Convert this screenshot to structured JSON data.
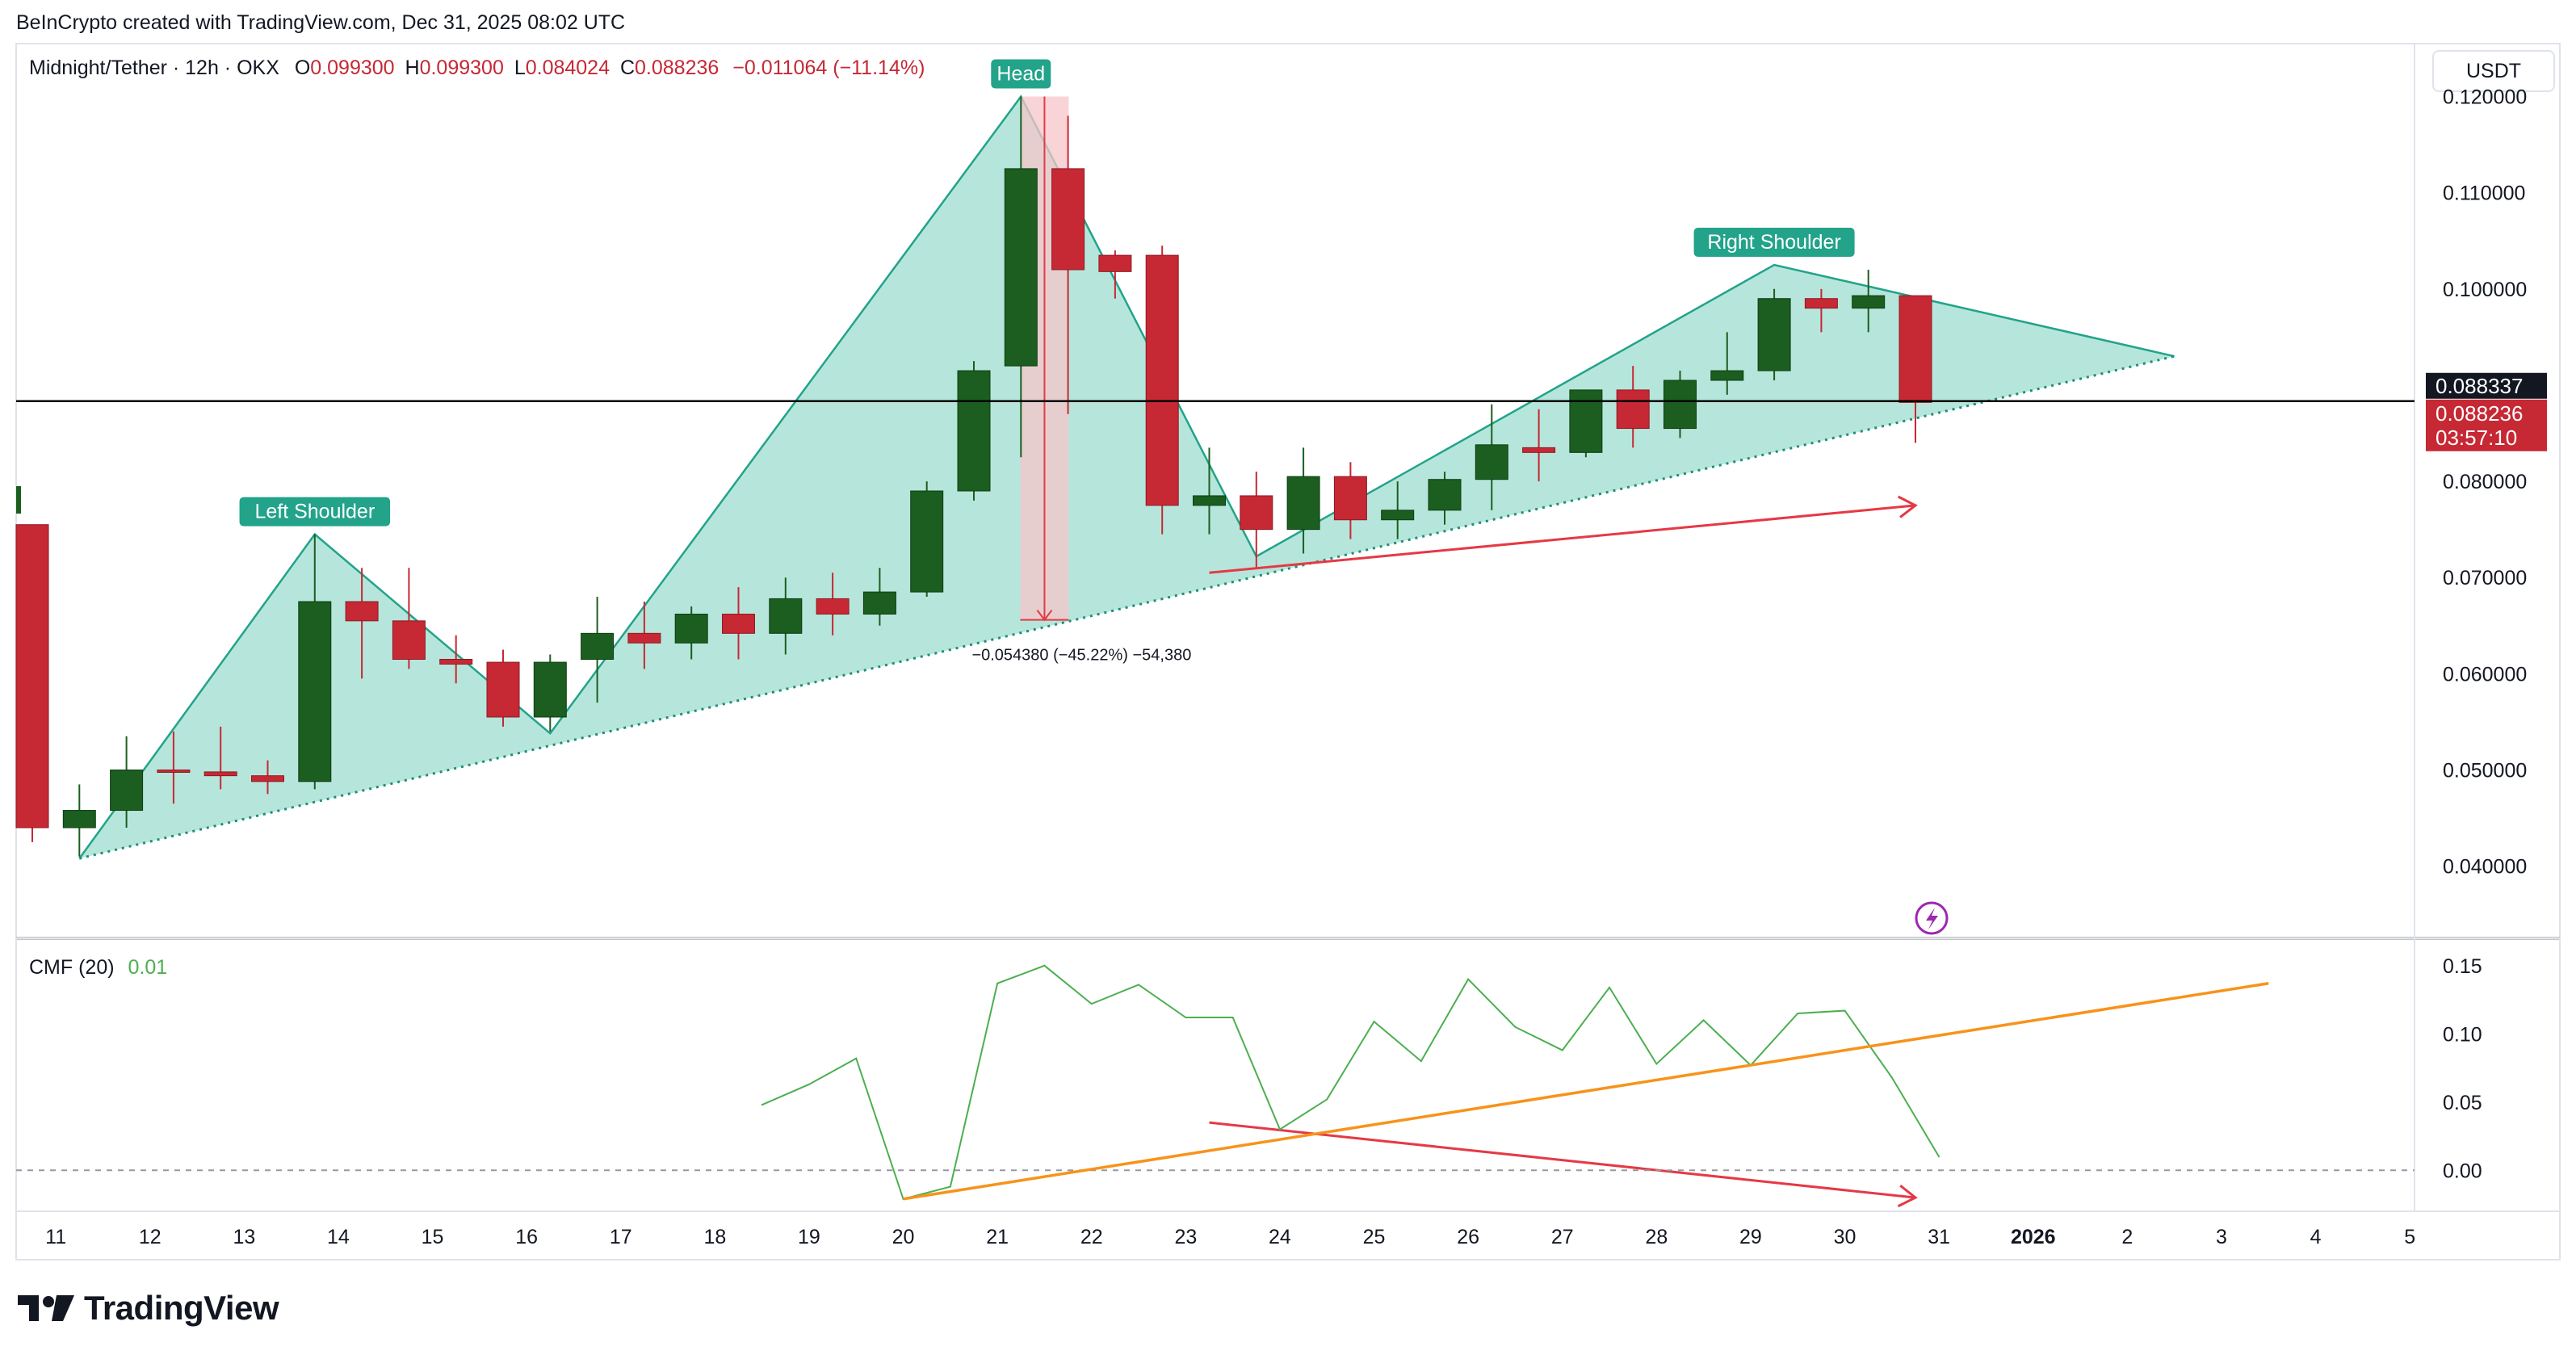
{
  "header": {
    "attribution": "BeInCrypto created with TradingView.com, Dec 31, 2025 08:02 UTC",
    "symbol": "Midnight/Tether · 12h · OKX",
    "o_label": "O",
    "o_value": "0.099300",
    "h_label": "H",
    "h_value": "0.099300",
    "l_label": "L",
    "l_value": "0.084024",
    "c_label": "C",
    "c_value": "0.088236",
    "change": "−0.011064 (−11.14%)"
  },
  "currency": "USDT",
  "brand": "TradingView",
  "colors": {
    "up": "#1b5e20",
    "down": "#c62834",
    "pattern_fill": "#b2e5d9",
    "pattern_line": "#22a38a",
    "tag_bg": "#22a38a",
    "cmf_line": "#4caf50",
    "cmf_trend": "#f7931a",
    "arrow": "#e53945",
    "price_line": "#000000",
    "lightning": "#9c27b0"
  },
  "chart_data": [
    {
      "type": "candlestick",
      "title": "Midnight/Tether · 12h · OKX",
      "x_labels": [
        {
          "t": 0.5,
          "label": "11"
        },
        {
          "t": 2.5,
          "label": "12"
        },
        {
          "t": 4.5,
          "label": "13"
        },
        {
          "t": 6.5,
          "label": "14"
        },
        {
          "t": 8.5,
          "label": "15"
        },
        {
          "t": 10.5,
          "label": "16"
        },
        {
          "t": 12.5,
          "label": "17"
        },
        {
          "t": 14.5,
          "label": "18"
        },
        {
          "t": 16.5,
          "label": "19"
        },
        {
          "t": 18.5,
          "label": "20"
        },
        {
          "t": 20.5,
          "label": "21"
        },
        {
          "t": 22.5,
          "label": "22"
        },
        {
          "t": 24.5,
          "label": "23"
        },
        {
          "t": 26.5,
          "label": "24"
        },
        {
          "t": 28.5,
          "label": "25"
        },
        {
          "t": 30.5,
          "label": "26"
        },
        {
          "t": 32.5,
          "label": "27"
        },
        {
          "t": 34.5,
          "label": "28"
        },
        {
          "t": 36.5,
          "label": "29"
        },
        {
          "t": 38.5,
          "label": "30"
        },
        {
          "t": 40.5,
          "label": "31"
        },
        {
          "t": 42.5,
          "label": "2026"
        },
        {
          "t": 44.5,
          "label": "2"
        },
        {
          "t": 46.5,
          "label": "3"
        },
        {
          "t": 48.5,
          "label": "4"
        },
        {
          "t": 50.5,
          "label": "5"
        }
      ],
      "y_ticks": [
        "0.120000",
        "0.110000",
        "0.100000",
        "0.080000",
        "0.070000",
        "0.060000",
        "0.050000",
        "0.040000"
      ],
      "y_tick_values": [
        0.12,
        0.11,
        0.1,
        0.08,
        0.07,
        0.06,
        0.05,
        0.04
      ],
      "ylim": [
        0.0325,
        0.1255
      ],
      "candles": [
        {
          "t": 0,
          "o": 0.0755,
          "h": 0.0755,
          "l": 0.0425,
          "c": 0.044
        },
        {
          "t": 1,
          "o": 0.044,
          "h": 0.0485,
          "l": 0.041,
          "c": 0.0458
        },
        {
          "t": 2,
          "o": 0.0458,
          "h": 0.0535,
          "l": 0.044,
          "c": 0.05
        },
        {
          "t": 3,
          "o": 0.05,
          "h": 0.054,
          "l": 0.0465,
          "c": 0.0499
        },
        {
          "t": 4,
          "o": 0.0498,
          "h": 0.0545,
          "l": 0.048,
          "c": 0.0494
        },
        {
          "t": 5,
          "o": 0.0494,
          "h": 0.051,
          "l": 0.0475,
          "c": 0.0488
        },
        {
          "t": 6,
          "o": 0.0488,
          "h": 0.0745,
          "l": 0.048,
          "c": 0.0675
        },
        {
          "t": 7,
          "o": 0.0675,
          "h": 0.071,
          "l": 0.0595,
          "c": 0.0655
        },
        {
          "t": 8,
          "o": 0.0655,
          "h": 0.071,
          "l": 0.0605,
          "c": 0.0615
        },
        {
          "t": 9,
          "o": 0.0615,
          "h": 0.064,
          "l": 0.059,
          "c": 0.061
        },
        {
          "t": 10,
          "o": 0.0612,
          "h": 0.0625,
          "l": 0.0545,
          "c": 0.0555
        },
        {
          "t": 11,
          "o": 0.0555,
          "h": 0.062,
          "l": 0.054,
          "c": 0.0612
        },
        {
          "t": 12,
          "o": 0.0615,
          "h": 0.068,
          "l": 0.057,
          "c": 0.0642
        },
        {
          "t": 13,
          "o": 0.0642,
          "h": 0.0675,
          "l": 0.0605,
          "c": 0.0632
        },
        {
          "t": 14,
          "o": 0.0632,
          "h": 0.067,
          "l": 0.0615,
          "c": 0.0662
        },
        {
          "t": 15,
          "o": 0.0662,
          "h": 0.069,
          "l": 0.0615,
          "c": 0.0642
        },
        {
          "t": 16,
          "o": 0.0642,
          "h": 0.07,
          "l": 0.062,
          "c": 0.0678
        },
        {
          "t": 17,
          "o": 0.0678,
          "h": 0.0705,
          "l": 0.064,
          "c": 0.0662
        },
        {
          "t": 18,
          "o": 0.0662,
          "h": 0.071,
          "l": 0.065,
          "c": 0.0685
        },
        {
          "t": 19,
          "o": 0.0685,
          "h": 0.08,
          "l": 0.068,
          "c": 0.079
        },
        {
          "t": 20,
          "o": 0.079,
          "h": 0.0925,
          "l": 0.078,
          "c": 0.0915
        },
        {
          "t": 21,
          "o": 0.092,
          "h": 0.12,
          "l": 0.0825,
          "c": 0.1125
        },
        {
          "t": 22,
          "o": 0.1125,
          "h": 0.118,
          "l": 0.087,
          "c": 0.102
        },
        {
          "t": 23,
          "o": 0.1035,
          "h": 0.104,
          "l": 0.099,
          "c": 0.1018
        },
        {
          "t": 24,
          "o": 0.1035,
          "h": 0.1045,
          "l": 0.0745,
          "c": 0.0775
        },
        {
          "t": 25,
          "o": 0.0775,
          "h": 0.0835,
          "l": 0.0745,
          "c": 0.0785
        },
        {
          "t": 26,
          "o": 0.0785,
          "h": 0.081,
          "l": 0.071,
          "c": 0.075
        },
        {
          "t": 27,
          "o": 0.075,
          "h": 0.0835,
          "l": 0.0725,
          "c": 0.0805
        },
        {
          "t": 28,
          "o": 0.0805,
          "h": 0.082,
          "l": 0.074,
          "c": 0.076
        },
        {
          "t": 29,
          "o": 0.076,
          "h": 0.08,
          "l": 0.074,
          "c": 0.077
        },
        {
          "t": 30,
          "o": 0.077,
          "h": 0.081,
          "l": 0.0755,
          "c": 0.0802
        },
        {
          "t": 31,
          "o": 0.0802,
          "h": 0.088,
          "l": 0.077,
          "c": 0.0838
        },
        {
          "t": 32,
          "o": 0.0835,
          "h": 0.0875,
          "l": 0.08,
          "c": 0.083
        },
        {
          "t": 33,
          "o": 0.083,
          "h": 0.0895,
          "l": 0.0825,
          "c": 0.0895
        },
        {
          "t": 34,
          "o": 0.0895,
          "h": 0.092,
          "l": 0.0835,
          "c": 0.0855
        },
        {
          "t": 35,
          "o": 0.0855,
          "h": 0.0915,
          "l": 0.0845,
          "c": 0.0905
        },
        {
          "t": 36,
          "o": 0.0905,
          "h": 0.0955,
          "l": 0.089,
          "c": 0.0915
        },
        {
          "t": 37,
          "o": 0.0915,
          "h": 0.1,
          "l": 0.0905,
          "c": 0.099
        },
        {
          "t": 38,
          "o": 0.099,
          "h": 0.1,
          "l": 0.0955,
          "c": 0.098
        },
        {
          "t": 39,
          "o": 0.098,
          "h": 0.102,
          "l": 0.0955,
          "c": 0.0993
        },
        {
          "t": 40,
          "o": 0.0993,
          "h": 0.0993,
          "l": 0.084,
          "c": 0.0882
        }
      ],
      "current_price_line": 0.088337,
      "price_labels": {
        "line_label": "0.088337",
        "close_label": "0.088236",
        "countdown": "03:57:10"
      },
      "pattern": {
        "name": "Head and Shoulders",
        "polygon": [
          [
            1.0,
            0.0408
          ],
          [
            6.0,
            0.0745
          ],
          [
            11.0,
            0.0538
          ],
          [
            21.0,
            0.12
          ],
          [
            26.0,
            0.0722
          ],
          [
            37.0,
            0.1025
          ],
          [
            45.5,
            0.093
          ]
        ],
        "neckline": [
          [
            1.0,
            0.0408
          ],
          [
            45.5,
            0.093
          ]
        ],
        "annotations": [
          {
            "text": "Left Shoulder",
            "t": 6.0,
            "v": 0.0745
          },
          {
            "text": "Head",
            "t": 21.0,
            "v": 0.12
          },
          {
            "text": "Right Shoulder",
            "t": 37.0,
            "v": 0.1025
          }
        ]
      },
      "measure": {
        "t": 21.5,
        "v_top": 0.12,
        "v_bottom": 0.0656,
        "label": "−0.054380 (−45.22%) −54,380"
      },
      "price_arrow": {
        "from": [
          25.0,
          0.0705
        ],
        "to": [
          40.0,
          0.0775
        ]
      }
    },
    {
      "type": "line",
      "title": "CMF (20)",
      "last_value": "0.01",
      "y_ticks": [
        "0.15",
        "0.10",
        "0.05",
        "0.00"
      ],
      "y_tick_values": [
        0.15,
        0.1,
        0.05,
        0.0
      ],
      "ylim": [
        -0.03,
        0.17
      ],
      "zero_line": 0.0,
      "series": [
        {
          "name": "CMF",
          "t": [
            15.5,
            16.5,
            17.5,
            18.5,
            19.5,
            20.5,
            21.5,
            22.5,
            23.5,
            24.5,
            25.5,
            26.5,
            27.5,
            28.5,
            29.5,
            30.5,
            31.5,
            32.5,
            33.5,
            34.5,
            35.5,
            36.5,
            37.5,
            38.5,
            39.5,
            40.5
          ],
          "values": [
            0.048,
            0.063,
            0.082,
            -0.021,
            -0.012,
            0.137,
            0.15,
            0.122,
            0.136,
            0.112,
            0.112,
            0.03,
            0.052,
            0.109,
            0.08,
            0.14,
            0.105,
            0.088,
            0.134,
            0.078,
            0.11,
            0.077,
            0.115,
            0.117,
            0.068,
            0.01
          ]
        }
      ],
      "trendline": {
        "from": [
          18.5,
          -0.021
        ],
        "to": [
          47.5,
          0.137
        ]
      },
      "arrow": {
        "from": [
          25.0,
          0.035
        ],
        "to": [
          40.0,
          -0.02
        ]
      }
    }
  ]
}
